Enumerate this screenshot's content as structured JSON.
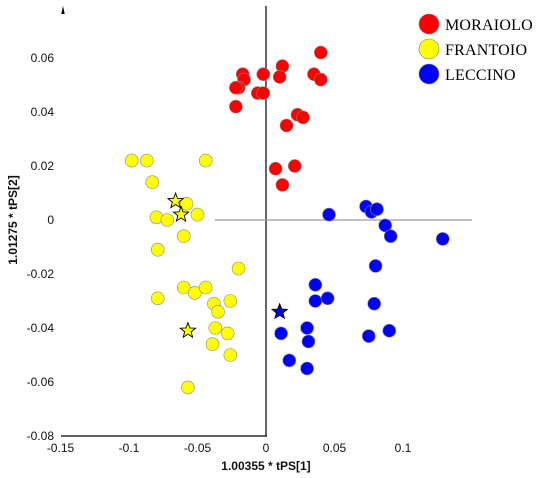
{
  "chart_data": {
    "type": "scatter",
    "title": "",
    "xlabel": "1.00355 * tPS[1]",
    "ylabel": "1.01275 * tPS[2]",
    "xlim": [
      -0.15,
      0.15
    ],
    "ylim": [
      -0.08,
      0.08
    ],
    "x_ticks": [
      "-0.15",
      "-0.1",
      "-0.05",
      "0",
      "0.05",
      "0.1"
    ],
    "y_ticks": [
      "0.06",
      "0.04",
      "0.02",
      "0",
      "-0.02",
      "-0.04",
      "-0.06",
      "-0.08"
    ],
    "x_tick_values": [
      -0.15,
      -0.1,
      -0.05,
      0,
      0.05,
      0.1
    ],
    "y_tick_values": [
      0.06,
      0.04,
      0.02,
      0,
      -0.02,
      -0.04,
      -0.06,
      -0.08
    ],
    "legend_position": "top-right",
    "series": [
      {
        "name": "MORAIOLO",
        "color": "#ff0000",
        "points": [
          [
            -0.017,
            0.054
          ],
          [
            -0.016,
            0.052
          ],
          [
            -0.02,
            0.049
          ],
          [
            -0.022,
            0.049
          ],
          [
            -0.006,
            0.047
          ],
          [
            -0.002,
            0.047
          ],
          [
            -0.002,
            0.054
          ],
          [
            0.012,
            0.057
          ],
          [
            0.01,
            0.053
          ],
          [
            0.035,
            0.054
          ],
          [
            0.04,
            0.062
          ],
          [
            0.04,
            0.052
          ],
          [
            -0.022,
            0.042
          ],
          [
            0.023,
            0.039
          ],
          [
            0.027,
            0.038
          ],
          [
            0.015,
            0.035
          ],
          [
            0.007,
            0.019
          ],
          [
            0.021,
            0.02
          ],
          [
            0.012,
            0.013
          ]
        ]
      },
      {
        "name": "FRANTOIO",
        "color": "#ffff00",
        "points": [
          [
            -0.098,
            0.022
          ],
          [
            -0.087,
            0.022
          ],
          [
            -0.044,
            0.022
          ],
          [
            -0.083,
            0.014
          ],
          [
            -0.058,
            0.006
          ],
          [
            -0.08,
            0.001
          ],
          [
            -0.072,
            0.0
          ],
          [
            -0.05,
            0.002
          ],
          [
            -0.06,
            -0.006
          ],
          [
            -0.079,
            -0.011
          ],
          [
            -0.02,
            -0.018
          ],
          [
            -0.06,
            -0.025
          ],
          [
            -0.052,
            -0.027
          ],
          [
            -0.044,
            -0.025
          ],
          [
            -0.079,
            -0.029
          ],
          [
            -0.026,
            -0.03
          ],
          [
            -0.038,
            -0.031
          ],
          [
            -0.035,
            -0.034
          ],
          [
            -0.037,
            -0.04
          ],
          [
            -0.028,
            -0.042
          ],
          [
            -0.039,
            -0.046
          ],
          [
            -0.026,
            -0.05
          ],
          [
            -0.057,
            -0.062
          ]
        ]
      },
      {
        "name": "LECCINO",
        "color": "#0000ff",
        "points": [
          [
            0.046,
            0.002
          ],
          [
            0.073,
            0.005
          ],
          [
            0.077,
            0.003
          ],
          [
            0.081,
            0.004
          ],
          [
            0.087,
            -0.002
          ],
          [
            0.091,
            -0.006
          ],
          [
            0.129,
            -0.007
          ],
          [
            0.08,
            -0.017
          ],
          [
            0.036,
            -0.024
          ],
          [
            0.036,
            -0.03
          ],
          [
            0.045,
            -0.029
          ],
          [
            0.079,
            -0.031
          ],
          [
            0.011,
            -0.042
          ],
          [
            0.03,
            -0.04
          ],
          [
            0.09,
            -0.041
          ],
          [
            0.075,
            -0.043
          ],
          [
            0.031,
            -0.045
          ],
          [
            0.017,
            -0.052
          ],
          [
            0.03,
            -0.055
          ]
        ]
      }
    ],
    "star_markers": [
      {
        "series": "FRANTOIO",
        "x": -0.066,
        "y": 0.007
      },
      {
        "series": "FRANTOIO",
        "x": -0.062,
        "y": 0.002
      },
      {
        "series": "FRANTOIO",
        "x": -0.057,
        "y": -0.041
      },
      {
        "series": "LECCINO",
        "x": 0.01,
        "y": -0.034
      }
    ]
  }
}
